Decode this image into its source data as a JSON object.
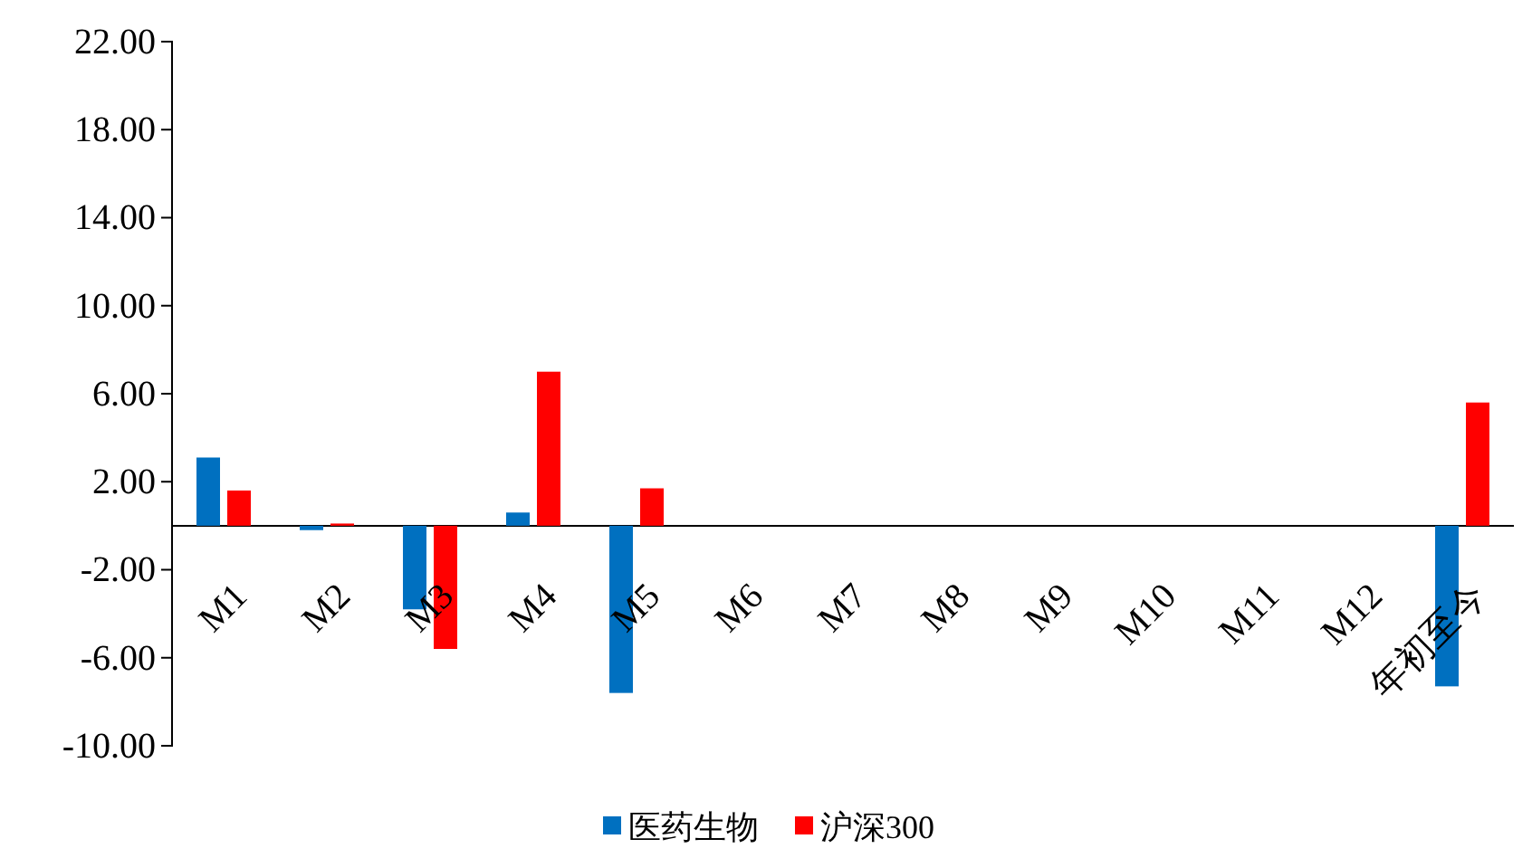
{
  "chart_data": {
    "type": "bar",
    "categories": [
      "M1",
      "M2",
      "M3",
      "M4",
      "M5",
      "M6",
      "M7",
      "M8",
      "M9",
      "M10",
      "M11",
      "M12",
      "年初至今"
    ],
    "series": [
      {
        "name": "医药生物",
        "color": "#0070c0",
        "values": [
          3.1,
          -0.2,
          -3.8,
          0.6,
          -7.6,
          null,
          null,
          null,
          null,
          null,
          null,
          null,
          -7.3
        ]
      },
      {
        "name": "沪深300",
        "color": "#ff0000",
        "values": [
          1.6,
          0.1,
          -5.6,
          7.0,
          1.7,
          null,
          null,
          null,
          null,
          null,
          null,
          null,
          5.6
        ]
      }
    ],
    "ylim": [
      -10,
      22
    ],
    "yticks": [
      {
        "value": 22,
        "label": "22.00"
      },
      {
        "value": 18,
        "label": "18.00"
      },
      {
        "value": 14,
        "label": "14.00"
      },
      {
        "value": 10,
        "label": "10.00"
      },
      {
        "value": 6,
        "label": "6.00"
      },
      {
        "value": 2,
        "label": "2.00"
      },
      {
        "value": -2,
        "label": "-2.00"
      },
      {
        "value": -6,
        "label": "-6.00"
      },
      {
        "value": -10,
        "label": "-10.00"
      }
    ],
    "grid": false,
    "legend": "bottom"
  }
}
